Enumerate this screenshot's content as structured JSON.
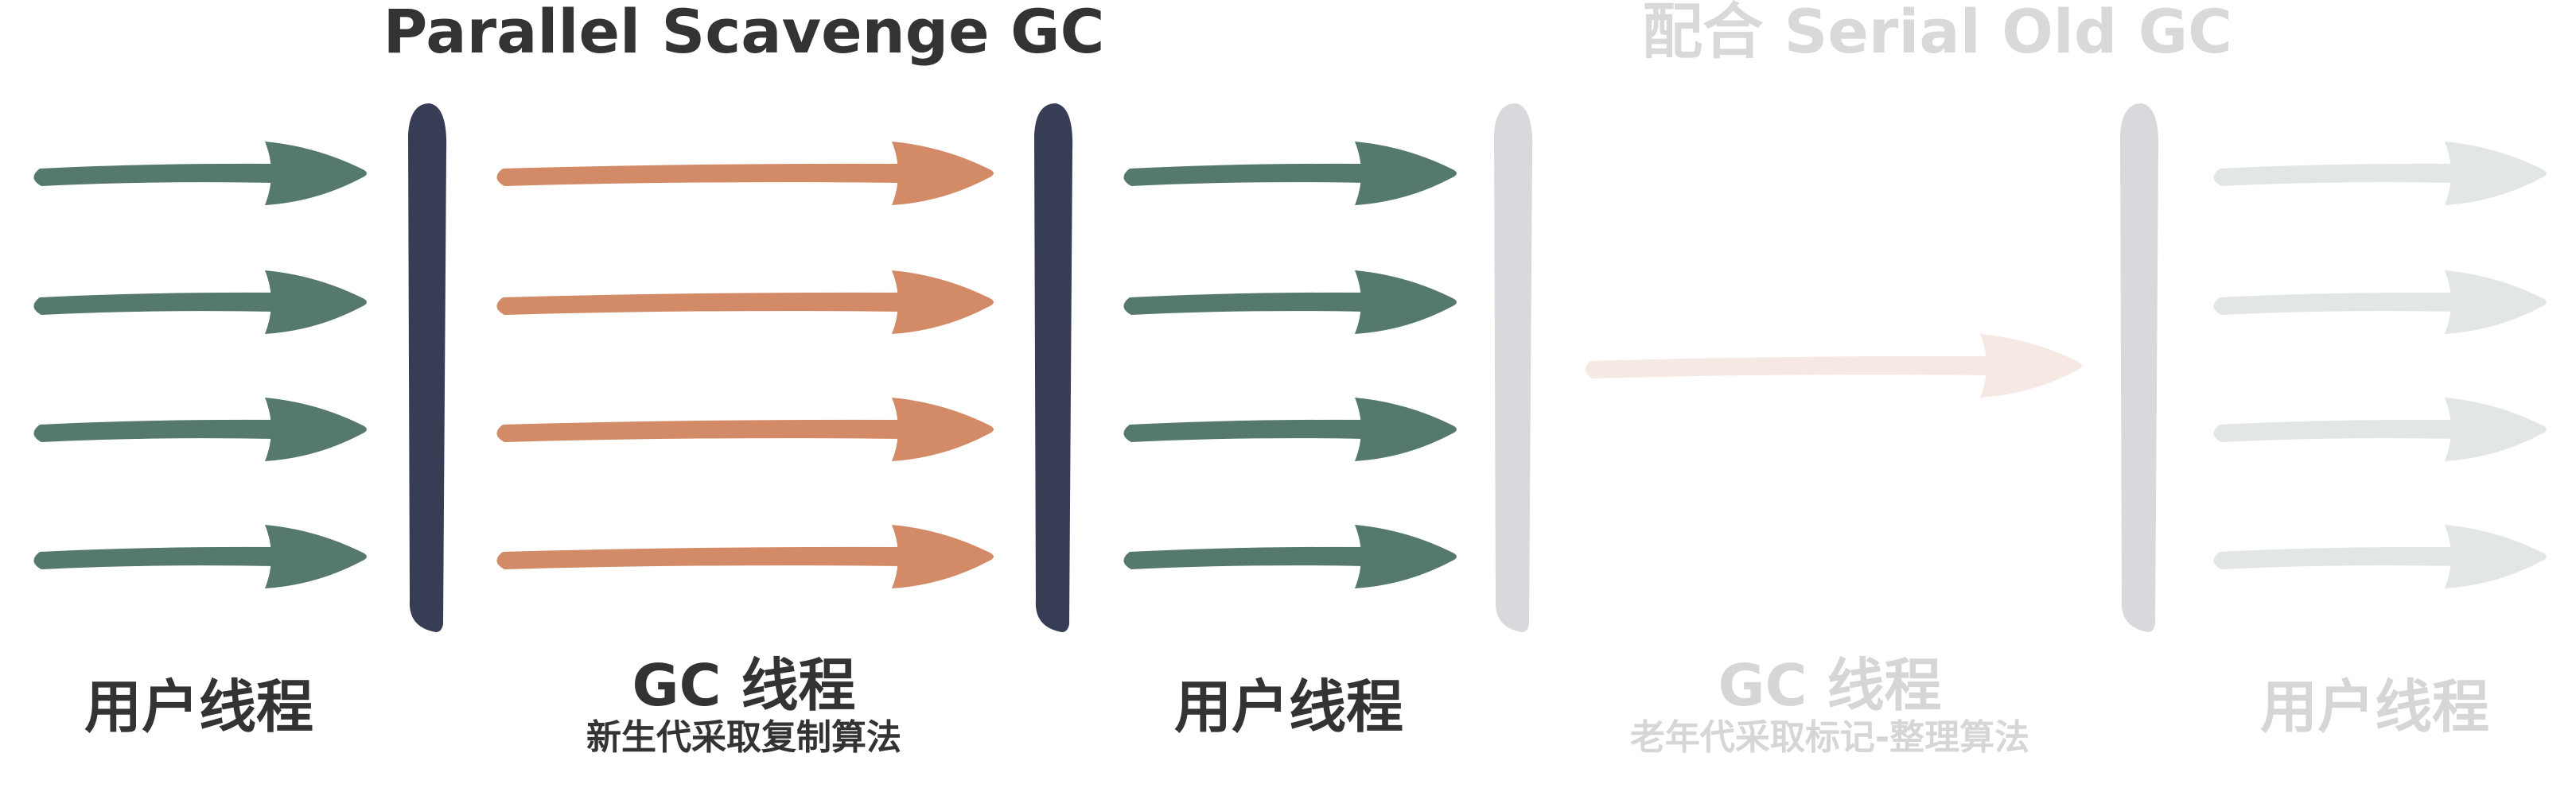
{
  "titles": {
    "main": "Parallel Scavenge GC",
    "secondary": "配合 Serial Old GC"
  },
  "groups": {
    "user_threads_1": {
      "label": "用户线程"
    },
    "gc_young": {
      "label": "GC 线程",
      "sub": "新生代采取复制算法"
    },
    "user_threads_2": {
      "label": "用户线程"
    },
    "gc_old": {
      "label": "GC 线程",
      "sub": "老年代采取标记-整理算法"
    },
    "user_threads_3": {
      "label": "用户线程"
    }
  },
  "colors": {
    "user_arrow": "#55796c",
    "gc_arrow": "#d38a67",
    "barrier": "#373d55",
    "faded_barrier": "#d8d9dd",
    "faded_user_arrow": "#e2e6e4",
    "faded_gc_arrow": "#f6e8e2",
    "text": "#333333",
    "faded_text": "#d6d6d6"
  }
}
